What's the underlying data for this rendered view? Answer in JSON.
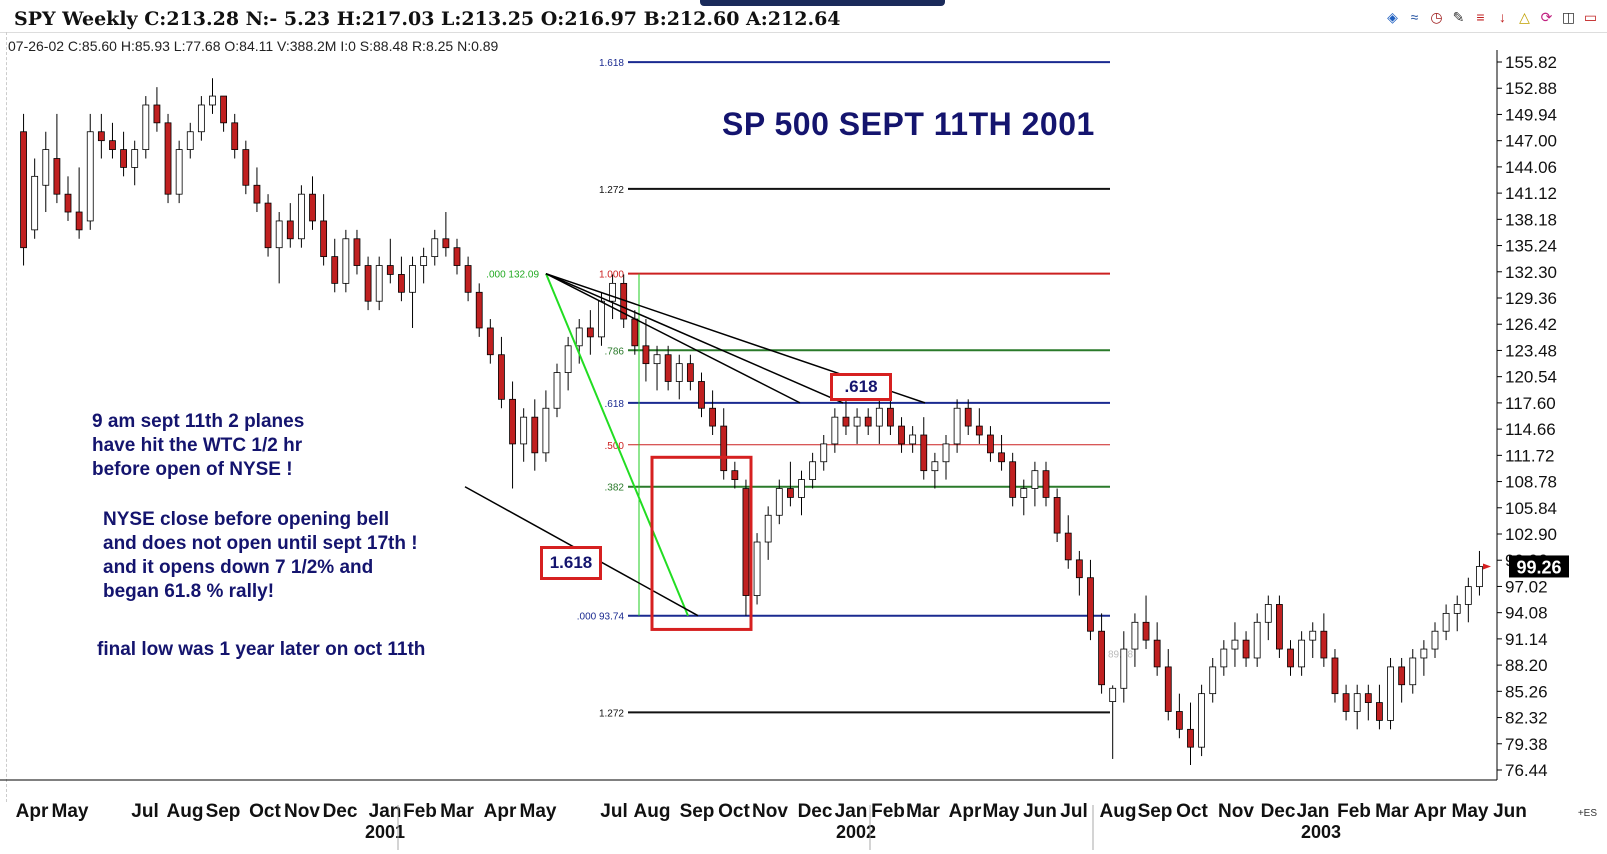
{
  "window": {
    "title": "SPY Weekly C:213.28 N:- 5.23 H:217.03 L:213.25 O:216.97 B:212.60 A:212.64",
    "bar_info": "07-26-02 C:85.60 H:85.93 L:77.68 O:84.11 V:388.2M I:0 S:88.48 R:8.25 N:0.89",
    "corner_label": "+ES",
    "toolbar_icons": [
      "layers-icon",
      "fan-icon",
      "clock-icon",
      "pencil-line-icon",
      "list-icon",
      "arrow-down-icon",
      "triangle-icon",
      "circle-arrow-icon",
      "trash-icon",
      "eraser-icon"
    ]
  },
  "headline": "SP 500  SEPT 11TH 2001",
  "notes": {
    "planes": "9 am sept 11th 2 planes\nhave hit the WTC 1/2 hr\nbefore open of NYSE !",
    "nyse": "NYSE close before opening bell\nand does not open until sept 17th !\nand it opens down 7  1/2% and\nbegan 61.8 % rally!",
    "final": "final low was 1 year later on oct 11th"
  },
  "boxes": {
    "upper": ".618",
    "lower": "1.618"
  },
  "colors": {
    "title": "#14146e",
    "red": "#cc2020",
    "blue": "#1a2a90",
    "green": "#2a7a2a",
    "lime": "#22cc22",
    "candle_red": "#c02020"
  },
  "chart_data": {
    "type": "candlestick",
    "ylim": [
      76.44,
      155.82
    ],
    "y_ticks": [
      "155.82",
      "152.88",
      "149.94",
      "147.00",
      "144.06",
      "141.12",
      "138.18",
      "135.24",
      "132.30",
      "129.36",
      "126.42",
      "123.48",
      "120.54",
      "117.60",
      "114.66",
      "111.72",
      "108.78",
      "105.84",
      "102.90",
      "99.96",
      "97.02",
      "94.08",
      "91.14",
      "88.20",
      "85.26",
      "82.32",
      "79.38",
      "76.44"
    ],
    "last_price": "99.26",
    "months": [
      "Apr",
      "May",
      "Jul",
      "Aug",
      "Sep",
      "Oct",
      "Nov",
      "Dec",
      "Jan",
      "Feb",
      "Mar",
      "Apr",
      "May",
      "Jul",
      "Aug",
      "Sep",
      "Oct",
      "Nov",
      "Dec",
      "Jan",
      "Feb",
      "Mar",
      "Apr",
      "May",
      "Jun",
      "Jul",
      "Aug",
      "Sep",
      "Oct",
      "Nov",
      "Dec",
      "Jan",
      "Feb",
      "Mar",
      "Apr",
      "May",
      "Jun"
    ],
    "years": [
      "2001",
      "2002",
      "2003"
    ],
    "fib_levels": [
      {
        "label": "1.618",
        "value": 155.8,
        "color": "#1a2a90"
      },
      {
        "label": "1.272",
        "value": 141.6,
        "color": "#111111"
      },
      {
        "label": "1.000",
        "value": 132.09,
        "color": "#cc2020"
      },
      {
        "label": ".786",
        "value": 123.5,
        "color": "#2a7a2a"
      },
      {
        "label": ".618",
        "value": 117.6,
        "color": "#1a2a90"
      },
      {
        "label": ".500",
        "value": 112.9,
        "color": "#cc2020"
      },
      {
        "label": ".382",
        "value": 108.2,
        "color": "#2a7a2a"
      },
      {
        "label": ".000 93.74",
        "value": 93.74,
        "color": "#1a2a90"
      },
      {
        "label": "1.272",
        "value": 82.9,
        "color": "#111111"
      }
    ],
    "high_anchor_label": ".000 132.09",
    "faint_label": "89.48",
    "candles": [
      {
        "o": 148,
        "h": 150,
        "l": 133,
        "c": 135
      },
      {
        "o": 137,
        "h": 145,
        "l": 136,
        "c": 143
      },
      {
        "o": 142,
        "h": 148,
        "l": 139,
        "c": 146
      },
      {
        "o": 145,
        "h": 150,
        "l": 140,
        "c": 141
      },
      {
        "o": 141,
        "h": 143,
        "l": 138,
        "c": 139
      },
      {
        "o": 139,
        "h": 144,
        "l": 136,
        "c": 137
      },
      {
        "o": 138,
        "h": 150,
        "l": 137,
        "c": 148
      },
      {
        "o": 148,
        "h": 150,
        "l": 145,
        "c": 147
      },
      {
        "o": 147,
        "h": 149,
        "l": 145,
        "c": 146
      },
      {
        "o": 146,
        "h": 148,
        "l": 143,
        "c": 144
      },
      {
        "o": 144,
        "h": 147,
        "l": 142,
        "c": 146
      },
      {
        "o": 146,
        "h": 152,
        "l": 145,
        "c": 151
      },
      {
        "o": 151,
        "h": 153,
        "l": 148,
        "c": 149
      },
      {
        "o": 149,
        "h": 150,
        "l": 140,
        "c": 141
      },
      {
        "o": 141,
        "h": 147,
        "l": 140,
        "c": 146
      },
      {
        "o": 146,
        "h": 149,
        "l": 145,
        "c": 148
      },
      {
        "o": 148,
        "h": 152,
        "l": 147,
        "c": 151
      },
      {
        "o": 151,
        "h": 154,
        "l": 150,
        "c": 152
      },
      {
        "o": 152,
        "h": 152,
        "l": 148,
        "c": 149
      },
      {
        "o": 149,
        "h": 150,
        "l": 145,
        "c": 146
      },
      {
        "o": 146,
        "h": 147,
        "l": 141,
        "c": 142
      },
      {
        "o": 142,
        "h": 144,
        "l": 139,
        "c": 140
      },
      {
        "o": 140,
        "h": 141,
        "l": 134,
        "c": 135
      },
      {
        "o": 135,
        "h": 139,
        "l": 131,
        "c": 138
      },
      {
        "o": 138,
        "h": 140,
        "l": 135,
        "c": 136
      },
      {
        "o": 136,
        "h": 142,
        "l": 135,
        "c": 141
      },
      {
        "o": 141,
        "h": 143,
        "l": 137,
        "c": 138
      },
      {
        "o": 138,
        "h": 141,
        "l": 133,
        "c": 134
      },
      {
        "o": 134,
        "h": 136,
        "l": 130,
        "c": 131
      },
      {
        "o": 131,
        "h": 137,
        "l": 130,
        "c": 136
      },
      {
        "o": 136,
        "h": 137,
        "l": 132,
        "c": 133
      },
      {
        "o": 133,
        "h": 134,
        "l": 128,
        "c": 129
      },
      {
        "o": 129,
        "h": 134,
        "l": 128,
        "c": 133
      },
      {
        "o": 133,
        "h": 136,
        "l": 131,
        "c": 132
      },
      {
        "o": 132,
        "h": 134,
        "l": 129,
        "c": 130
      },
      {
        "o": 130,
        "h": 134,
        "l": 126,
        "c": 133
      },
      {
        "o": 133,
        "h": 135,
        "l": 131,
        "c": 134
      },
      {
        "o": 134,
        "h": 137,
        "l": 133,
        "c": 136
      },
      {
        "o": 136,
        "h": 139,
        "l": 134,
        "c": 135
      },
      {
        "o": 135,
        "h": 136,
        "l": 132,
        "c": 133
      },
      {
        "o": 133,
        "h": 134,
        "l": 129,
        "c": 130
      },
      {
        "o": 130,
        "h": 131,
        "l": 125,
        "c": 126
      },
      {
        "o": 126,
        "h": 127,
        "l": 122,
        "c": 123
      },
      {
        "o": 123,
        "h": 125,
        "l": 117,
        "c": 118
      },
      {
        "o": 118,
        "h": 120,
        "l": 108,
        "c": 113
      },
      {
        "o": 113,
        "h": 117,
        "l": 111,
        "c": 116
      },
      {
        "o": 116,
        "h": 118,
        "l": 110,
        "c": 112
      },
      {
        "o": 112,
        "h": 119,
        "l": 111,
        "c": 117
      },
      {
        "o": 117,
        "h": 122,
        "l": 116,
        "c": 121
      },
      {
        "o": 121,
        "h": 125,
        "l": 119,
        "c": 124
      },
      {
        "o": 124,
        "h": 127,
        "l": 122,
        "c": 126
      },
      {
        "o": 126,
        "h": 128,
        "l": 123,
        "c": 125
      },
      {
        "o": 125,
        "h": 130,
        "l": 124,
        "c": 129
      },
      {
        "o": 129,
        "h": 132,
        "l": 127,
        "c": 131
      },
      {
        "o": 131,
        "h": 132,
        "l": 126,
        "c": 127
      },
      {
        "o": 127,
        "h": 128,
        "l": 123,
        "c": 124
      },
      {
        "o": 124,
        "h": 127,
        "l": 120,
        "c": 122
      },
      {
        "o": 122,
        "h": 124,
        "l": 119,
        "c": 123
      },
      {
        "o": 123,
        "h": 124,
        "l": 119,
        "c": 120
      },
      {
        "o": 120,
        "h": 123,
        "l": 118,
        "c": 122
      },
      {
        "o": 122,
        "h": 123,
        "l": 119,
        "c": 120
      },
      {
        "o": 120,
        "h": 121,
        "l": 116,
        "c": 117
      },
      {
        "o": 117,
        "h": 119,
        "l": 114,
        "c": 115
      },
      {
        "o": 115,
        "h": 117,
        "l": 109,
        "c": 110
      },
      {
        "o": 110,
        "h": 111,
        "l": 108,
        "c": 109
      },
      {
        "o": 108,
        "h": 109,
        "l": 93.74,
        "c": 96
      },
      {
        "o": 96,
        "h": 103,
        "l": 95,
        "c": 102
      },
      {
        "o": 102,
        "h": 106,
        "l": 100,
        "c": 105
      },
      {
        "o": 105,
        "h": 109,
        "l": 104,
        "c": 108
      },
      {
        "o": 108,
        "h": 111,
        "l": 106,
        "c": 107
      },
      {
        "o": 107,
        "h": 110,
        "l": 105,
        "c": 109
      },
      {
        "o": 109,
        "h": 112,
        "l": 108,
        "c": 111
      },
      {
        "o": 111,
        "h": 114,
        "l": 110,
        "c": 113
      },
      {
        "o": 113,
        "h": 117,
        "l": 112,
        "c": 116
      },
      {
        "o": 116,
        "h": 118,
        "l": 114,
        "c": 115
      },
      {
        "o": 115,
        "h": 117,
        "l": 113,
        "c": 116
      },
      {
        "o": 116,
        "h": 117,
        "l": 114,
        "c": 115
      },
      {
        "o": 115,
        "h": 118,
        "l": 113,
        "c": 117
      },
      {
        "o": 117,
        "h": 118,
        "l": 114,
        "c": 115
      },
      {
        "o": 115,
        "h": 116,
        "l": 112,
        "c": 113
      },
      {
        "o": 113,
        "h": 115,
        "l": 112,
        "c": 114
      },
      {
        "o": 114,
        "h": 116,
        "l": 109,
        "c": 110
      },
      {
        "o": 110,
        "h": 112,
        "l": 108,
        "c": 111
      },
      {
        "o": 111,
        "h": 114,
        "l": 109,
        "c": 113
      },
      {
        "o": 113,
        "h": 118,
        "l": 112,
        "c": 117
      },
      {
        "o": 117,
        "h": 118,
        "l": 114,
        "c": 115
      },
      {
        "o": 115,
        "h": 117,
        "l": 113,
        "c": 114
      },
      {
        "o": 114,
        "h": 115,
        "l": 111,
        "c": 112
      },
      {
        "o": 112,
        "h": 114,
        "l": 110,
        "c": 111
      },
      {
        "o": 111,
        "h": 112,
        "l": 106,
        "c": 107
      },
      {
        "o": 107,
        "h": 109,
        "l": 105,
        "c": 108
      },
      {
        "o": 108,
        "h": 111,
        "l": 106,
        "c": 110
      },
      {
        "o": 110,
        "h": 111,
        "l": 106,
        "c": 107
      },
      {
        "o": 107,
        "h": 108,
        "l": 102,
        "c": 103
      },
      {
        "o": 103,
        "h": 105,
        "l": 99,
        "c": 100
      },
      {
        "o": 100,
        "h": 101,
        "l": 96,
        "c": 98
      },
      {
        "o": 98,
        "h": 100,
        "l": 91,
        "c": 92
      },
      {
        "o": 92,
        "h": 94,
        "l": 85,
        "c": 86
      },
      {
        "o": 84.11,
        "h": 85.93,
        "l": 77.68,
        "c": 85.6
      },
      {
        "o": 85.6,
        "h": 92,
        "l": 84,
        "c": 90
      },
      {
        "o": 90,
        "h": 94,
        "l": 88,
        "c": 93
      },
      {
        "o": 93,
        "h": 96,
        "l": 90,
        "c": 91
      },
      {
        "o": 91,
        "h": 93,
        "l": 87,
        "c": 88
      },
      {
        "o": 88,
        "h": 90,
        "l": 82,
        "c": 83
      },
      {
        "o": 83,
        "h": 85,
        "l": 80,
        "c": 81
      },
      {
        "o": 81,
        "h": 84,
        "l": 77,
        "c": 79
      },
      {
        "o": 79,
        "h": 86,
        "l": 78,
        "c": 85
      },
      {
        "o": 85,
        "h": 89,
        "l": 84,
        "c": 88
      },
      {
        "o": 88,
        "h": 91,
        "l": 87,
        "c": 90
      },
      {
        "o": 90,
        "h": 93,
        "l": 88,
        "c": 91
      },
      {
        "o": 91,
        "h": 92,
        "l": 88,
        "c": 89
      },
      {
        "o": 89,
        "h": 94,
        "l": 88,
        "c": 93
      },
      {
        "o": 93,
        "h": 96,
        "l": 91,
        "c": 95
      },
      {
        "o": 95,
        "h": 96,
        "l": 89,
        "c": 90
      },
      {
        "o": 90,
        "h": 91,
        "l": 87,
        "c": 88
      },
      {
        "o": 88,
        "h": 92,
        "l": 87,
        "c": 91
      },
      {
        "o": 91,
        "h": 93,
        "l": 89,
        "c": 92
      },
      {
        "o": 92,
        "h": 94,
        "l": 88,
        "c": 89
      },
      {
        "o": 89,
        "h": 90,
        "l": 84,
        "c": 85
      },
      {
        "o": 85,
        "h": 86,
        "l": 82,
        "c": 83
      },
      {
        "o": 83,
        "h": 86,
        "l": 81,
        "c": 85
      },
      {
        "o": 85,
        "h": 86,
        "l": 82,
        "c": 84
      },
      {
        "o": 84,
        "h": 86,
        "l": 81,
        "c": 82
      },
      {
        "o": 82,
        "h": 89,
        "l": 81,
        "c": 88
      },
      {
        "o": 88,
        "h": 89,
        "l": 84,
        "c": 86
      },
      {
        "o": 86,
        "h": 90,
        "l": 85,
        "c": 89
      },
      {
        "o": 89,
        "h": 91,
        "l": 87,
        "c": 90
      },
      {
        "o": 90,
        "h": 93,
        "l": 89,
        "c": 92
      },
      {
        "o": 92,
        "h": 95,
        "l": 91,
        "c": 94
      },
      {
        "o": 94,
        "h": 96,
        "l": 92,
        "c": 95
      },
      {
        "o": 95,
        "h": 98,
        "l": 93,
        "c": 97
      },
      {
        "o": 97,
        "h": 101,
        "l": 96,
        "c": 99.26
      }
    ]
  }
}
